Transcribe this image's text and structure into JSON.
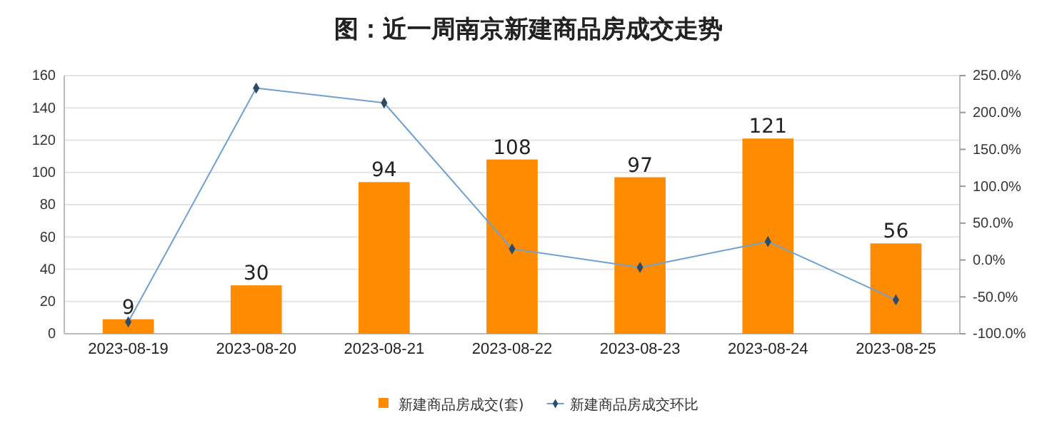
{
  "chart_data": {
    "type": "bar",
    "title": "图：近一周南京新建商品房成交走势",
    "categories": [
      "2023-08-19",
      "2023-08-20",
      "2023-08-21",
      "2023-08-22",
      "2023-08-23",
      "2023-08-24",
      "2023-08-25"
    ],
    "series": [
      {
        "name": "新建商品房成交(套)",
        "color": "#ff8c00",
        "values": [
          9,
          30,
          94,
          108,
          97,
          121,
          56
        ],
        "data_labels": true
      },
      {
        "name": "新建商品房成交环比",
        "type": "line",
        "axis": "y2",
        "color": "#6fa0d0",
        "marker": "diamond",
        "values": [
          -84,
          233,
          213,
          15,
          -10,
          25,
          -54
        ]
      }
    ],
    "ylim": [
      0,
      160
    ],
    "yticks": [
      0,
      20,
      40,
      60,
      80,
      100,
      120,
      140,
      160
    ],
    "y2lim": [
      -100,
      250
    ],
    "y2ticks": [
      {
        "value": -100,
        "label": "-100.0%"
      },
      {
        "value": -50,
        "label": "-50.0%"
      },
      {
        "value": 0,
        "label": "0.0%"
      },
      {
        "value": 50,
        "label": "50.0%"
      },
      {
        "value": 100,
        "label": "100.0%"
      },
      {
        "value": 150,
        "label": "150.0%"
      },
      {
        "value": 200,
        "label": "200.0%"
      },
      {
        "value": 250,
        "label": "250.0%"
      }
    ],
    "grid": "y",
    "legend": "bottom"
  }
}
